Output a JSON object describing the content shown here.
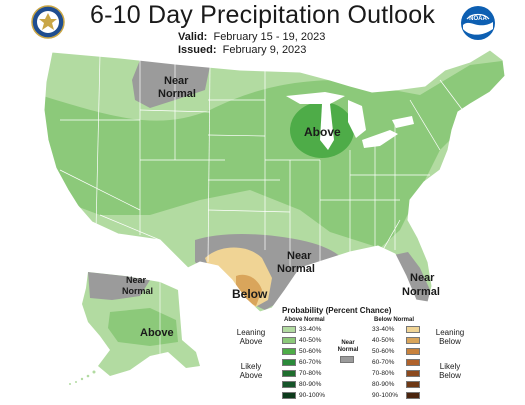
{
  "header": {
    "title": "6-10 Day Precipitation Outlook",
    "valid_label": "Valid:",
    "valid_value": "February 15 - 19, 2023",
    "issued_label": "Issued:",
    "issued_value": "February 9, 2023",
    "noaa_logo_text": "NOAA"
  },
  "map": {
    "labels": {
      "near_normal_nw_1": "Near",
      "near_normal_nw_2": "Normal",
      "above_great_lakes": "Above",
      "near_normal_tx_1": "Near",
      "near_normal_tx_2": "Normal",
      "below_tx": "Below",
      "near_normal_fl_1": "Near",
      "near_normal_fl_2": "Normal",
      "near_normal_ak_1": "Near",
      "near_normal_ak_2": "Normal",
      "above_ak": "Above"
    },
    "colors": {
      "leaning_above": "#b2dba1",
      "above_40_50": "#8cc97a",
      "above_50_60": "#4eac48",
      "near_normal": "#9b9b9b",
      "below_33_40": "#f0d495",
      "below_40_50": "#d9a55b",
      "water": "#ffffff",
      "border": "#ffffff"
    }
  },
  "legend": {
    "title": "Probability (Percent Chance)",
    "above_header": "Above Normal",
    "below_header": "Below Normal",
    "near_normal_label_1": "Near",
    "near_normal_label_2": "Normal",
    "leaning_above_1": "Leaning",
    "leaning_above_2": "Above",
    "likely_above_1": "Likely",
    "likely_above_2": "Above",
    "leaning_below_1": "Leaning",
    "leaning_below_2": "Below",
    "likely_below_1": "Likely",
    "likely_below_2": "Below",
    "above_ranges": [
      "33-40%",
      "40-50%",
      "50-60%",
      "60-70%",
      "70-80%",
      "80-90%",
      "90-100%"
    ],
    "below_ranges": [
      "33-40%",
      "40-50%",
      "50-60%",
      "60-70%",
      "70-80%",
      "80-90%",
      "90-100%"
    ],
    "above_colors": [
      "#b2dba1",
      "#8cc97a",
      "#4eac48",
      "#2b8a3a",
      "#1f6e2e",
      "#16552a",
      "#0c3a1b"
    ],
    "below_colors": [
      "#f0d495",
      "#d9a55b",
      "#c8823d",
      "#b0622b",
      "#8c4a1e",
      "#6e3815",
      "#4a240d"
    ]
  }
}
